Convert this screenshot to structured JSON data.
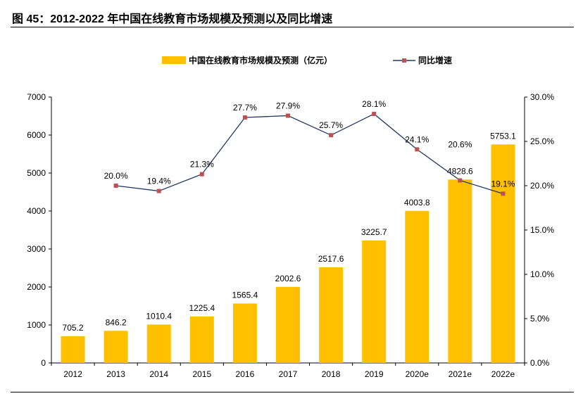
{
  "title": "图 45：2012-2022 年中国在线教育市场规模及预测以及同比增速",
  "chart_data": {
    "type": "bar+line",
    "categories": [
      "2012",
      "2013",
      "2014",
      "2015",
      "2016",
      "2017",
      "2018",
      "2019",
      "2020e",
      "2021e",
      "2022e"
    ],
    "series": [
      {
        "name": "中国在线教育市场规模及预测（亿元）",
        "type": "bar",
        "axis": "left",
        "color": "#FFC000",
        "values": [
          705.2,
          846.2,
          1010.4,
          1225.4,
          1565.4,
          2002.6,
          2517.6,
          3225.7,
          4003.8,
          4828.6,
          5753.1
        ],
        "labels": [
          "705.2",
          "846.2",
          "1010.4",
          "1225.4",
          "1565.4",
          "2002.6",
          "2517.6",
          "3225.7",
          "4003.8",
          "4828.6",
          "5753.1"
        ]
      },
      {
        "name": "同比增速",
        "type": "line",
        "axis": "right",
        "color": "#1F3864",
        "marker_color": "#C0504D",
        "values": [
          null,
          20.0,
          19.4,
          21.3,
          27.7,
          27.9,
          25.7,
          28.1,
          24.1,
          20.6,
          19.1
        ],
        "labels": [
          null,
          "20.0%",
          "19.4%",
          "21.3%",
          "27.7%",
          "27.9%",
          "25.7%",
          "28.1%",
          "24.1%",
          "20.6%",
          "19.1%"
        ]
      }
    ],
    "left_axis": {
      "range": [
        0,
        7000
      ],
      "ticks": [
        "0",
        "1000",
        "2000",
        "3000",
        "4000",
        "5000",
        "6000",
        "7000"
      ]
    },
    "right_axis": {
      "range": [
        0,
        30
      ],
      "ticks": [
        "0.0%",
        "5.0%",
        "10.0%",
        "15.0%",
        "20.0%",
        "25.0%",
        "30.0%"
      ]
    },
    "grid": false,
    "legend_placement": "top"
  }
}
